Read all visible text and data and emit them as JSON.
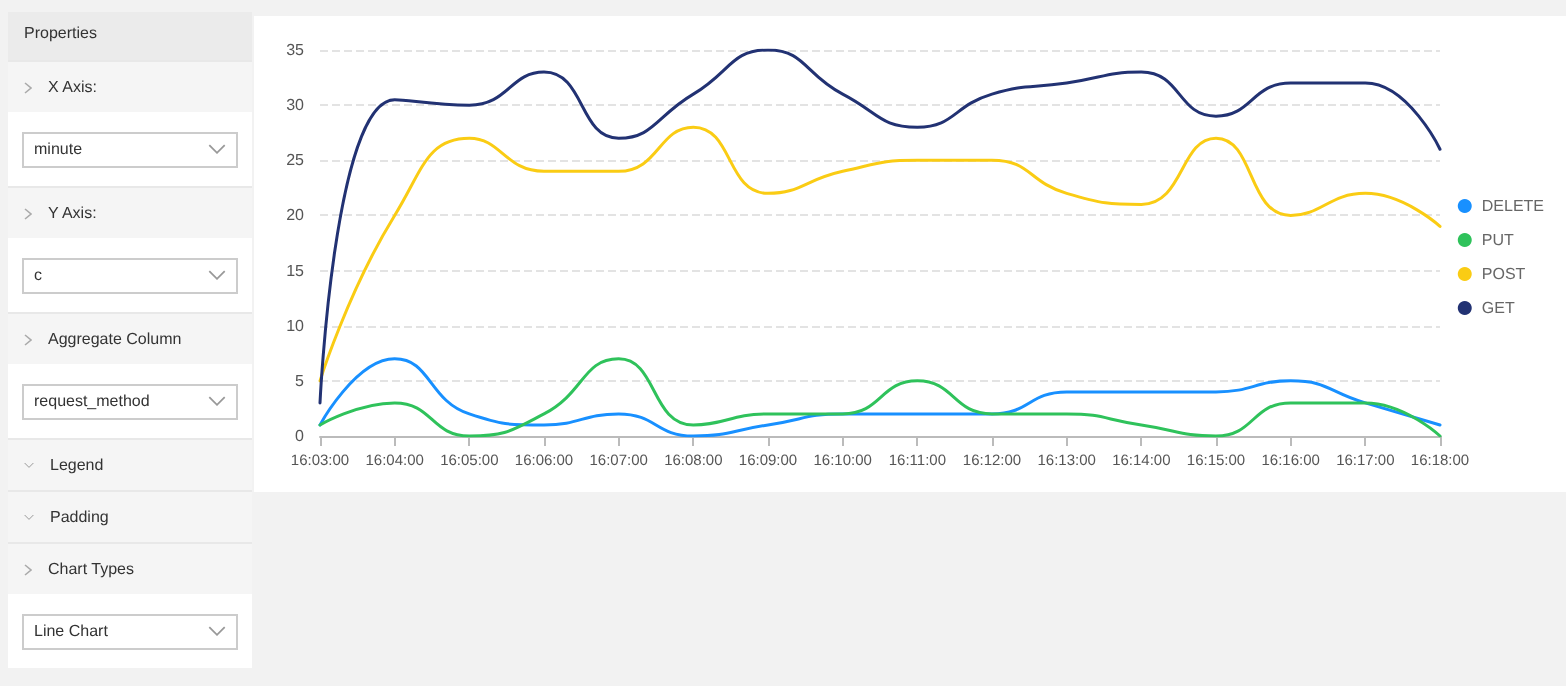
{
  "chart_data": [
    {
      "type": "other",
      "title": "Properties",
      "annotations": [
        "X Axis:",
        "minute",
        "Y Axis:",
        "c",
        "Aggregate Column",
        "request_method",
        "Legend",
        "Padding",
        "Chart Types",
        "Line Chart"
      ]
    },
    {
      "type": "line",
      "categories": [
        "16:03:00",
        "16:04:00",
        "16:05:00",
        "16:06:00",
        "16:07:00",
        "16:08:00",
        "16:09:00",
        "16:10:00",
        "16:11:00",
        "16:12:00",
        "16:13:00",
        "16:14:00",
        "16:15:00",
        "16:16:00",
        "16:17:00",
        "16:18:00"
      ],
      "series": [
        {
          "name": "DELETE",
          "color": "#1890ff",
          "values": [
            1,
            7,
            2,
            1,
            2,
            0,
            1,
            2,
            2,
            2,
            4,
            4,
            4,
            5,
            3,
            1
          ]
        },
        {
          "name": "PUT",
          "color": "#2fc25b",
          "values": [
            1,
            3,
            0,
            2,
            7,
            1,
            2,
            2,
            5,
            2,
            2,
            1,
            0,
            3,
            3,
            0
          ]
        },
        {
          "name": "POST",
          "color": "#facc14",
          "values": [
            5,
            20,
            27,
            24,
            24,
            28,
            22,
            24,
            25,
            25,
            22,
            21,
            27,
            20,
            22,
            19
          ]
        },
        {
          "name": "GET",
          "color": "#223273",
          "values": [
            3,
            30.5,
            30,
            33,
            27,
            31,
            35,
            31,
            28,
            31,
            32,
            33,
            29,
            32,
            32,
            26
          ]
        }
      ],
      "ylim": [
        0,
        35
      ],
      "yticks": [
        0,
        5,
        10,
        15,
        20,
        25,
        30,
        35
      ],
      "grid": "y",
      "legend": "right",
      "marker": "none",
      "line_style": "solid"
    }
  ]
}
